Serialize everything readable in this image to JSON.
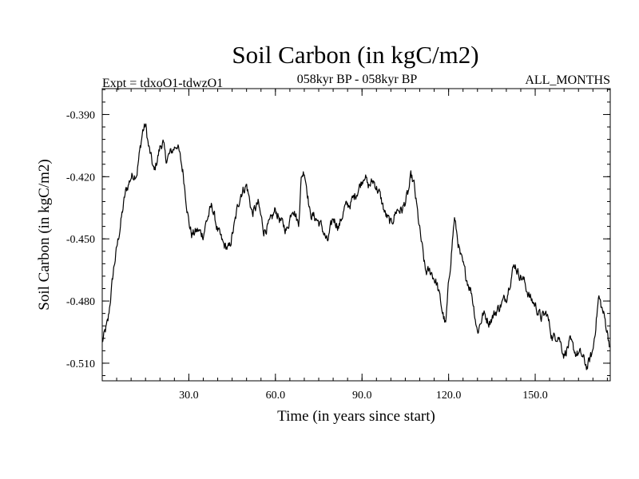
{
  "chart_data": {
    "type": "line",
    "title": "Soil Carbon (in kgC/m2)",
    "subtitle_left": "Expt = tdxoO1-tdwzO1",
    "subtitle_center": "058kyr BP - 058kyr BP",
    "subtitle_right": "ALL_MONTHS",
    "xlabel": "Time (in years since start)",
    "ylabel": "Soil Carbon (in kgC/m2)",
    "xlim": [
      0,
      176
    ],
    "ylim": [
      -0.5185,
      -0.3775
    ],
    "xticks": [
      30,
      60,
      90,
      120,
      150
    ],
    "xtick_labels": [
      "30.0",
      "60.0",
      "90.0",
      "120.0",
      "150.0"
    ],
    "yticks": [
      -0.39,
      -0.42,
      -0.45,
      -0.48,
      -0.51
    ],
    "ytick_labels": [
      "-0.390",
      "-0.420",
      "-0.450",
      "-0.480",
      "-0.510"
    ],
    "x_minor_step": 5,
    "y_minor_step": 0.006,
    "grid": false,
    "series": [
      {
        "name": "Soil Carbon",
        "color": "#000000",
        "x": [
          0,
          2,
          4,
          6,
          8,
          10,
          12,
          14,
          15,
          16,
          18,
          20,
          21,
          22,
          24,
          26,
          28,
          30,
          31,
          33,
          35,
          36,
          38,
          40,
          42,
          44,
          46,
          47,
          48,
          50,
          52,
          54,
          56,
          58,
          60,
          62,
          64,
          66,
          68,
          69,
          70,
          71,
          72,
          74,
          76,
          78,
          80,
          82,
          84,
          86,
          88,
          90,
          91,
          92,
          94,
          96,
          98,
          100,
          102,
          104,
          106,
          107,
          108,
          110,
          112,
          114,
          116,
          118,
          119,
          120,
          122,
          124,
          126,
          128,
          130,
          132,
          134,
          136,
          138,
          140,
          142,
          143,
          144,
          146,
          148,
          150,
          152,
          154,
          156,
          158,
          160,
          162,
          164,
          166,
          168,
          170,
          172,
          174,
          176
        ],
        "y": [
          -0.5,
          -0.49,
          -0.464,
          -0.446,
          -0.428,
          -0.42,
          -0.418,
          -0.398,
          -0.395,
          -0.405,
          -0.418,
          -0.406,
          -0.403,
          -0.412,
          -0.408,
          -0.404,
          -0.418,
          -0.442,
          -0.448,
          -0.446,
          -0.448,
          -0.442,
          -0.434,
          -0.446,
          -0.453,
          -0.455,
          -0.442,
          -0.434,
          -0.428,
          -0.424,
          -0.438,
          -0.433,
          -0.446,
          -0.443,
          -0.436,
          -0.442,
          -0.446,
          -0.434,
          -0.443,
          -0.42,
          -0.417,
          -0.426,
          -0.438,
          -0.44,
          -0.444,
          -0.452,
          -0.44,
          -0.444,
          -0.435,
          -0.433,
          -0.428,
          -0.422,
          -0.418,
          -0.425,
          -0.422,
          -0.428,
          -0.438,
          -0.443,
          -0.436,
          -0.436,
          -0.428,
          -0.42,
          -0.424,
          -0.446,
          -0.466,
          -0.466,
          -0.472,
          -0.486,
          -0.492,
          -0.472,
          -0.44,
          -0.458,
          -0.468,
          -0.476,
          -0.495,
          -0.486,
          -0.49,
          -0.486,
          -0.482,
          -0.478,
          -0.466,
          -0.462,
          -0.466,
          -0.47,
          -0.478,
          -0.482,
          -0.488,
          -0.486,
          -0.498,
          -0.496,
          -0.506,
          -0.5,
          -0.505,
          -0.506,
          -0.512,
          -0.504,
          -0.478,
          -0.488,
          -0.502
        ]
      }
    ]
  }
}
